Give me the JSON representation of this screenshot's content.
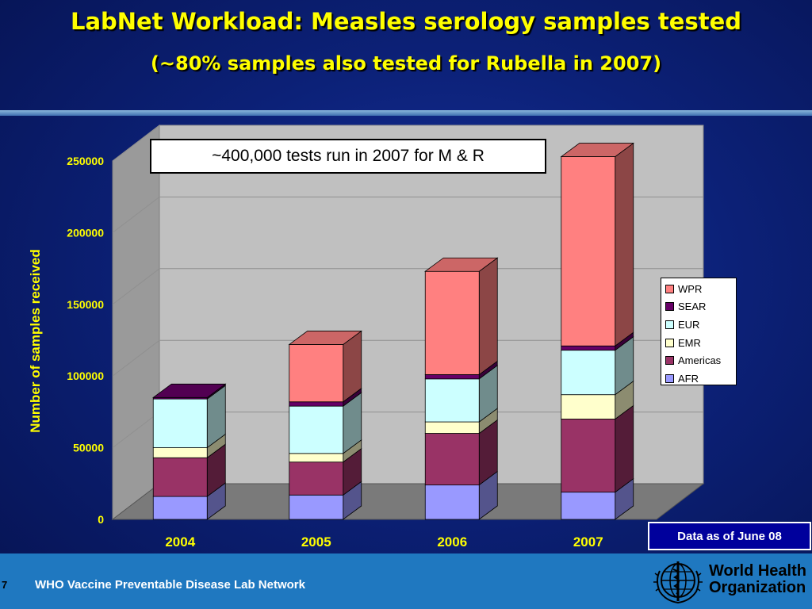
{
  "title": "LabNet Workload: Measles serology samples tested",
  "subtitle": "(~80% samples also tested for Rubella in 2007)",
  "annotation": "~400,000 tests run in 2007 for M & R",
  "data_note": "Data as of June 08",
  "footer": {
    "page_number": "7",
    "text": "WHO Vaccine Preventable Disease Lab Network",
    "org_name_line1": "World Health",
    "org_name_line2": "Organization"
  },
  "chart_data": {
    "type": "bar",
    "stacked": true,
    "three_d": true,
    "categories": [
      "2004",
      "2005",
      "2006",
      "2007"
    ],
    "ylabel": "Number of samples received",
    "xlabel": "",
    "ylim": [
      0,
      250000
    ],
    "yticks": [
      "0",
      "50000",
      "100000",
      "150000",
      "200000",
      "250000"
    ],
    "legend_position": "right",
    "series": [
      {
        "name": "AFR",
        "color": "#9999ff",
        "values": [
          16000,
          17000,
          24000,
          19000
        ]
      },
      {
        "name": "Americas",
        "color": "#993366",
        "values": [
          27000,
          23000,
          36000,
          51000
        ]
      },
      {
        "name": "EMR",
        "color": "#ffffcc",
        "values": [
          7000,
          6000,
          8000,
          17000
        ]
      },
      {
        "name": "EUR",
        "color": "#ccffff",
        "values": [
          34000,
          33000,
          30000,
          31000
        ]
      },
      {
        "name": "SEAR",
        "color": "#660066",
        "values": [
          1000,
          3000,
          3000,
          3000
        ]
      },
      {
        "name": "WPR",
        "color": "#ff8080",
        "values": [
          0,
          40000,
          72000,
          132000
        ]
      }
    ]
  }
}
